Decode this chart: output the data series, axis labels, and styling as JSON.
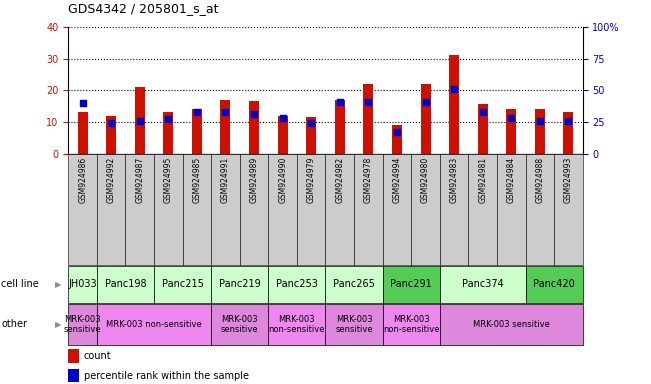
{
  "title": "GDS4342 / 205801_s_at",
  "samples": [
    "GSM924986",
    "GSM924992",
    "GSM924987",
    "GSM924995",
    "GSM924985",
    "GSM924991",
    "GSM924989",
    "GSM924990",
    "GSM924979",
    "GSM924982",
    "GSM924978",
    "GSM924994",
    "GSM924980",
    "GSM924983",
    "GSM924981",
    "GSM924984",
    "GSM924988",
    "GSM924993"
  ],
  "counts": [
    13,
    12,
    21,
    13,
    14,
    17,
    16.5,
    12,
    11.5,
    17,
    22,
    9,
    22,
    31,
    15.5,
    14,
    14,
    13
  ],
  "percentiles": [
    40,
    24,
    26,
    27,
    33,
    33,
    31,
    28,
    24,
    41,
    41,
    17,
    41,
    51,
    33,
    28,
    26,
    26
  ],
  "cell_lines": [
    {
      "name": "JH033",
      "start": 0,
      "end": 1,
      "color": "#ccffcc"
    },
    {
      "name": "Panc198",
      "start": 1,
      "end": 3,
      "color": "#ccffcc"
    },
    {
      "name": "Panc215",
      "start": 3,
      "end": 5,
      "color": "#ccffcc"
    },
    {
      "name": "Panc219",
      "start": 5,
      "end": 7,
      "color": "#ccffcc"
    },
    {
      "name": "Panc253",
      "start": 7,
      "end": 9,
      "color": "#ccffcc"
    },
    {
      "name": "Panc265",
      "start": 9,
      "end": 11,
      "color": "#ccffcc"
    },
    {
      "name": "Panc291",
      "start": 11,
      "end": 13,
      "color": "#55cc55"
    },
    {
      "name": "Panc374",
      "start": 13,
      "end": 16,
      "color": "#ccffcc"
    },
    {
      "name": "Panc420",
      "start": 16,
      "end": 18,
      "color": "#55cc55"
    }
  ],
  "other_labels": [
    {
      "text": "MRK-003\nsensitive",
      "start": 0,
      "end": 1,
      "color": "#dd88dd"
    },
    {
      "text": "MRK-003 non-sensitive",
      "start": 1,
      "end": 5,
      "color": "#ee88ee"
    },
    {
      "text": "MRK-003\nsensitive",
      "start": 5,
      "end": 7,
      "color": "#dd88dd"
    },
    {
      "text": "MRK-003\nnon-sensitive",
      "start": 7,
      "end": 9,
      "color": "#ee88ee"
    },
    {
      "text": "MRK-003\nsensitive",
      "start": 9,
      "end": 11,
      "color": "#dd88dd"
    },
    {
      "text": "MRK-003\nnon-sensitive",
      "start": 11,
      "end": 13,
      "color": "#ee88ee"
    },
    {
      "text": "MRK-003 sensitive",
      "start": 13,
      "end": 18,
      "color": "#dd88dd"
    }
  ],
  "ylim_left": [
    0,
    40
  ],
  "ylim_right": [
    0,
    100
  ],
  "yticks_left": [
    0,
    10,
    20,
    30,
    40
  ],
  "yticks_right": [
    0,
    25,
    50,
    75,
    100
  ],
  "ytick_labels_right": [
    "0",
    "25",
    "50",
    "75",
    "100%"
  ],
  "bar_color": "#cc1100",
  "dot_color": "#0000cc",
  "tick_color_left": "#cc1100",
  "tick_color_right": "#0000cc",
  "bar_width": 0.35,
  "dot_size": 18,
  "xticklabel_bg": "#cccccc",
  "cell_line_label": "cell line",
  "other_label": "other"
}
